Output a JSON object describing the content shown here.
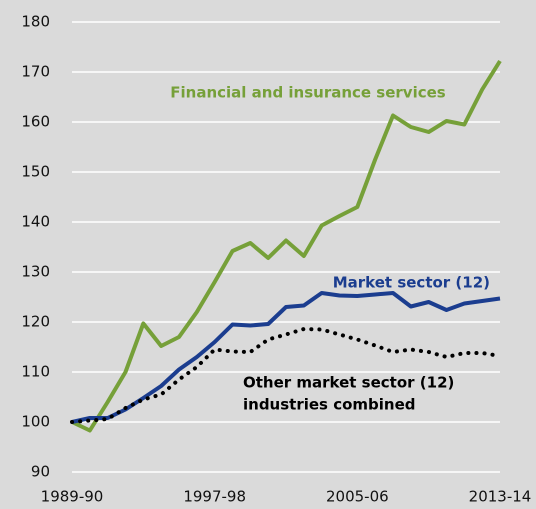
{
  "chart_data": {
    "type": "line",
    "categories": [
      "1989-90",
      null,
      null,
      null,
      null,
      null,
      null,
      null,
      "1997-98",
      null,
      null,
      null,
      null,
      null,
      null,
      null,
      "2005-06",
      null,
      null,
      null,
      null,
      null,
      null,
      null,
      "2013-14"
    ],
    "series": [
      {
        "name": "Financial and insurance services",
        "color": "#76a039",
        "dash": false,
        "values": [
          100,
          98.3,
          104,
          110,
          119.7,
          115.2,
          117,
          122,
          128,
          134.2,
          135.8,
          132.8,
          136.3,
          133.2,
          139.3,
          141.2,
          143,
          152.5,
          161.3,
          159,
          158,
          160.2,
          159.5,
          166.5,
          172.2
        ]
      },
      {
        "name": "Market sector (12)",
        "color": "#1b3d8f",
        "dash": false,
        "values": [
          100,
          100.8,
          100.8,
          102.5,
          104.8,
          107.2,
          110.5,
          113,
          116,
          119.5,
          119.3,
          119.6,
          123,
          123.3,
          125.8,
          125.3,
          125.2,
          125.5,
          125.8,
          123.1,
          124,
          122.4,
          123.7,
          124.2,
          124.7
        ]
      },
      {
        "name": [
          "Other market sector (12)",
          "industries combined"
        ],
        "color": "#000000",
        "dash": true,
        "values": [
          100,
          100.3,
          100.6,
          102.8,
          104.5,
          105.5,
          108.5,
          111,
          114.5,
          114.1,
          114,
          116.5,
          117.5,
          118.6,
          118.5,
          117.5,
          116.5,
          115.3,
          114,
          114.5,
          114,
          113,
          113.8,
          113.8,
          113.2
        ]
      }
    ],
    "ylim": [
      90,
      180
    ],
    "yticks": [
      90,
      100,
      110,
      120,
      130,
      140,
      150,
      160,
      170,
      180
    ],
    "grid": true
  }
}
